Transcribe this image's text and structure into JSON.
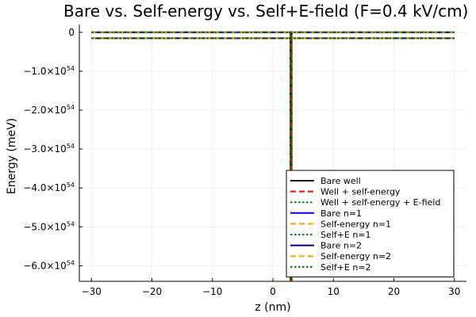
{
  "chart_data": {
    "type": "line",
    "title": "Bare vs. Self-energy vs. Self+E-field (F=0.4 kV/cm)",
    "xlabel": "z (nm)",
    "ylabel": "Energy (meV)",
    "xlim": [
      -32,
      32
    ],
    "ylim": [
      -6.4e+54,
      2e+53
    ],
    "x_ticks": [
      -30,
      -20,
      -10,
      0,
      10,
      20,
      30
    ],
    "x_tick_labels": [
      "−30",
      "−20",
      "−10",
      "0",
      "10",
      "20",
      "30"
    ],
    "y_ticks": [
      {
        "value": 0,
        "mantissa": "0",
        "exponent": ""
      },
      {
        "value": -1e+54,
        "mantissa": "−1.0×10",
        "exponent": "54"
      },
      {
        "value": -2e+54,
        "mantissa": "−2.0×10",
        "exponent": "54"
      },
      {
        "value": -3e+54,
        "mantissa": "−3.0×10",
        "exponent": "54"
      },
      {
        "value": -4e+54,
        "mantissa": "−4.0×10",
        "exponent": "54"
      },
      {
        "value": -5e+54,
        "mantissa": "−5.0×10",
        "exponent": "54"
      },
      {
        "value": -6e+54,
        "mantissa": "−6.0×10",
        "exponent": "54"
      }
    ],
    "grid": true,
    "legend_position": "bottom-right",
    "series": [
      {
        "name": "Bare well",
        "color": "#000000",
        "dash": "solid",
        "x": [
          -30,
          2.9,
          2.9,
          3.1,
          3.1,
          30
        ],
        "y": [
          0,
          0,
          -6.4e+54,
          -6.4e+54,
          0,
          0
        ]
      },
      {
        "name": "Well + self-energy",
        "color": "#ff0000",
        "dash": "dashed",
        "x": [
          -30,
          2.9,
          2.9,
          3.1,
          3.1,
          30
        ],
        "y": [
          0,
          0,
          -6.4e+54,
          -6.4e+54,
          0,
          0
        ]
      },
      {
        "name": "Well + self-energy + E-field",
        "color": "#008000",
        "dash": "dotted",
        "x": [
          -30,
          2.9,
          2.9,
          3.1,
          3.1,
          30
        ],
        "y": [
          0,
          0,
          -6.4e+54,
          -6.4e+54,
          0,
          0
        ]
      },
      {
        "name": "Bare n=1",
        "color": "#0000ff",
        "dash": "solid",
        "x": [
          -30,
          30
        ],
        "y": [
          0,
          0
        ]
      },
      {
        "name": "Self-energy n=1",
        "color": "#ffa500",
        "dash": "dashed",
        "x": [
          -30,
          30
        ],
        "y": [
          0,
          0
        ]
      },
      {
        "name": "Self+E n=1",
        "color": "#008000",
        "dash": "dotted",
        "x": [
          -30,
          30
        ],
        "y": [
          0,
          0
        ]
      },
      {
        "name": "Bare n=2",
        "color": "#00008b",
        "dash": "solid",
        "x": [
          -30,
          30
        ],
        "y": [
          -1.5e+53,
          -1.5e+53
        ]
      },
      {
        "name": "Self-energy n=2",
        "color": "#ffa500",
        "dash": "dashed",
        "x": [
          -30,
          30
        ],
        "y": [
          -1.5e+53,
          -1.5e+53
        ]
      },
      {
        "name": "Self+E n=2",
        "color": "#006400",
        "dash": "dotted",
        "x": [
          -30,
          30
        ],
        "y": [
          -1.5e+53,
          -1.5e+53
        ]
      }
    ]
  }
}
